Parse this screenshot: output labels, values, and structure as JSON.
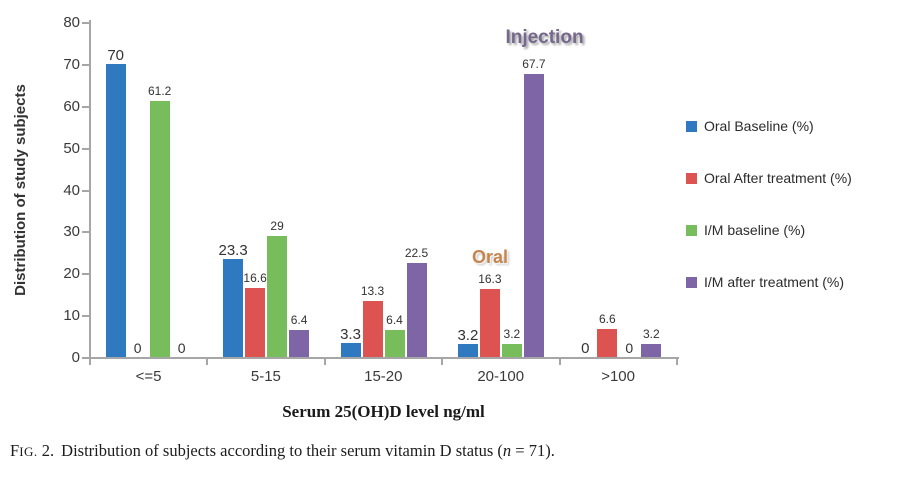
{
  "chart_data": {
    "type": "bar",
    "title": "",
    "xlabel": "Serum 25(OH)D level ng/ml",
    "ylabel": "Distribution of study subjects",
    "ylim": [
      0,
      80
    ],
    "yticks": [
      0,
      10,
      20,
      30,
      40,
      50,
      60,
      70,
      80
    ],
    "grid": false,
    "legend_position": "right",
    "categories": [
      "<=5",
      "5-15",
      "15-20",
      "20-100",
      ">100"
    ],
    "series": [
      {
        "name": "Oral Baseline (%)",
        "color": "#2e79c0",
        "values": [
          70,
          23.3,
          3.3,
          3.2,
          0
        ]
      },
      {
        "name": "Oral After treatment (%)",
        "color": "#dd5352",
        "values": [
          0,
          16.6,
          13.3,
          16.3,
          6.6
        ]
      },
      {
        "name": "I/M baseline (%)",
        "color": "#77bd5b",
        "values": [
          61.2,
          29,
          6.4,
          3.2,
          0
        ]
      },
      {
        "name": "I/M after treatment (%)",
        "color": "#7d65a6",
        "values": [
          0,
          6.4,
          22.5,
          67.7,
          3.2
        ]
      }
    ]
  },
  "annotations": {
    "injection": "Injection",
    "oral": "Oral"
  },
  "axis_colors": {
    "axis_line": "#a6a6a6"
  },
  "caption": {
    "fig_f": "F",
    "fig_ig": "IG.",
    "num": "2.",
    "body": "Distribution of subjects according to their serum vitamin D status (",
    "n": "n",
    "tail": "= 71)."
  }
}
